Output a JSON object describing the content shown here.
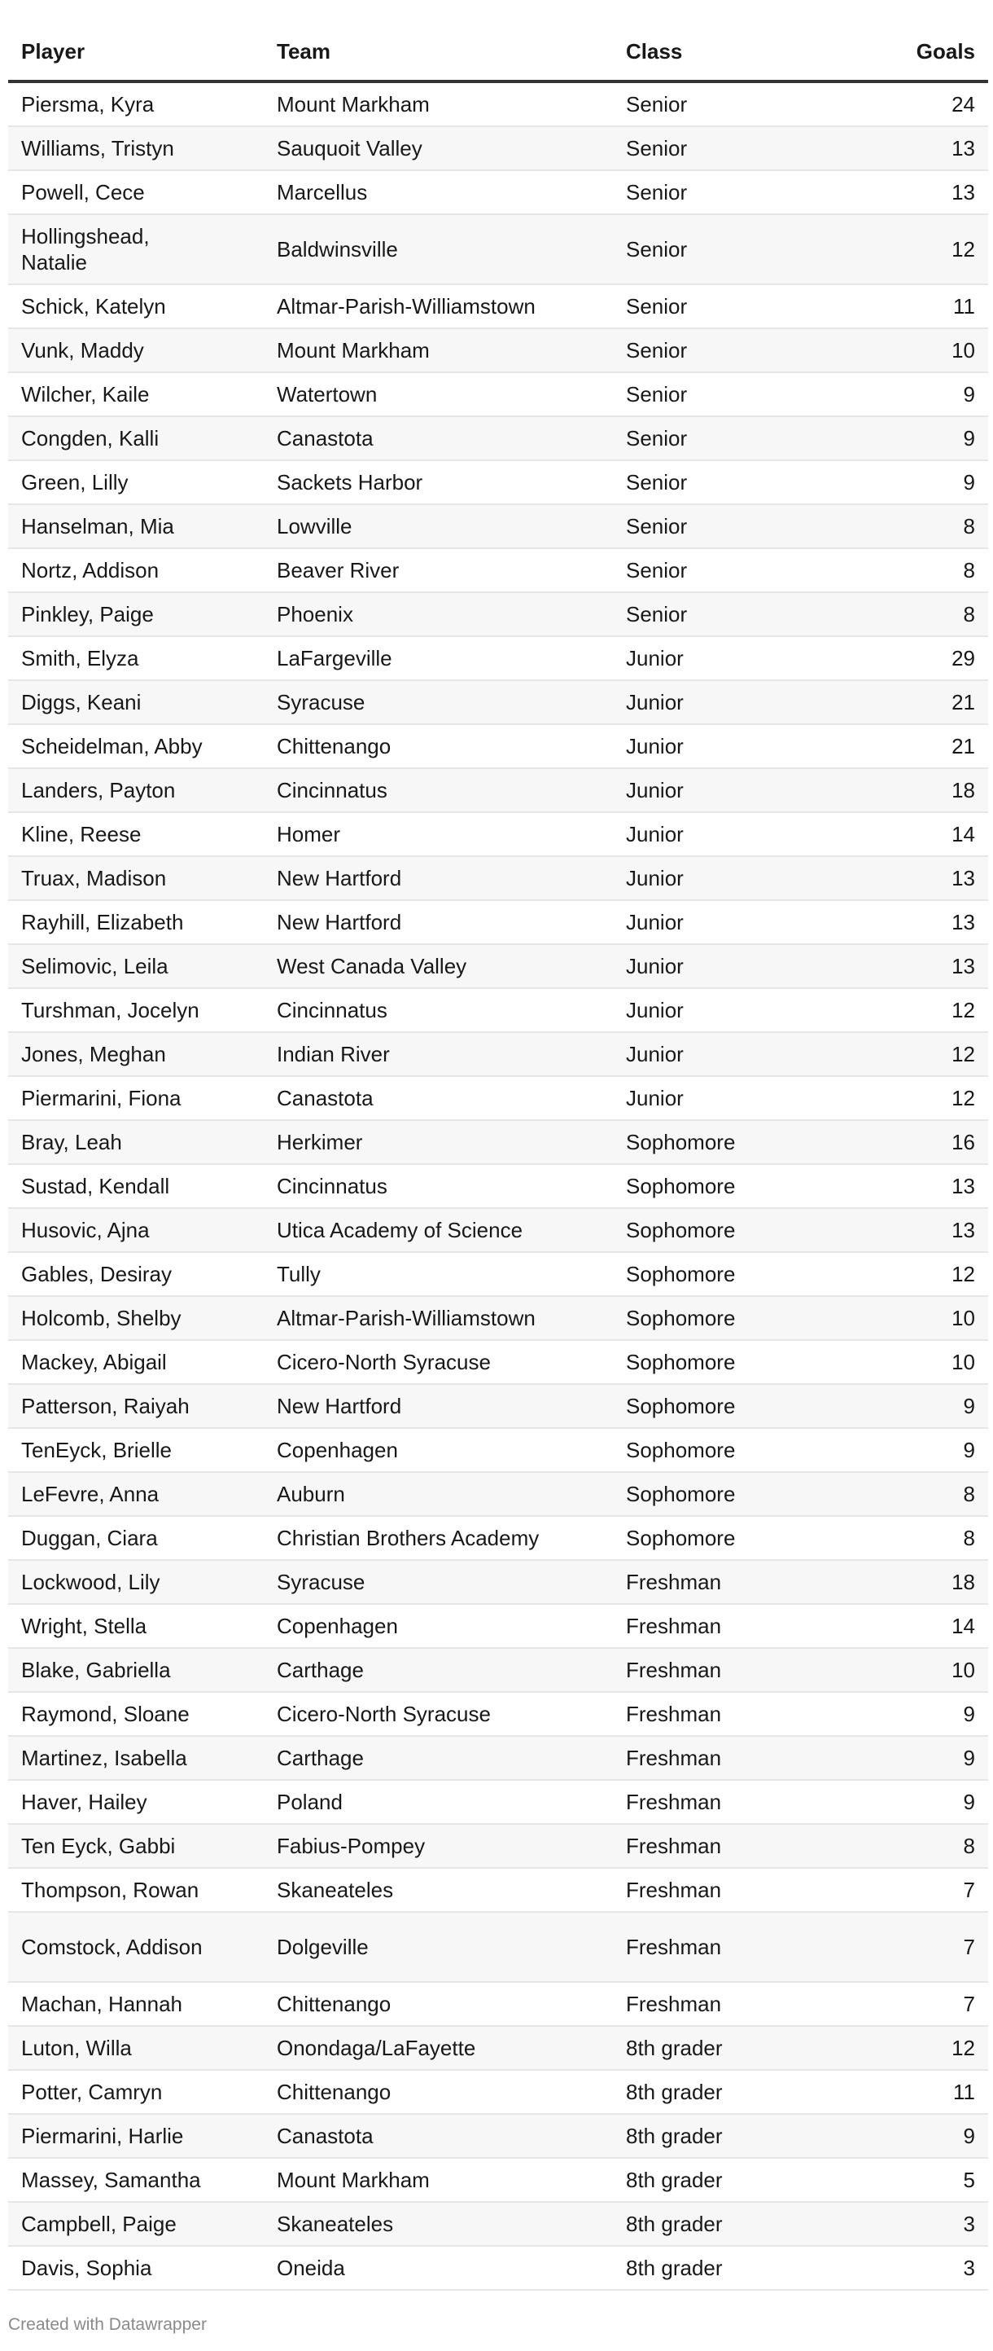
{
  "table": {
    "headers": [
      "Player",
      "Team",
      "Class",
      "Goals"
    ],
    "rows": [
      [
        "Piersma, Kyra",
        "Mount Markham",
        "Senior",
        "24"
      ],
      [
        "Williams, Tristyn",
        "Sauquoit Valley",
        "Senior",
        "13"
      ],
      [
        "Powell, Cece",
        "Marcellus",
        "Senior",
        "13"
      ],
      [
        "Hollingshead, Natalie",
        "Baldwinsville",
        "Senior",
        "12"
      ],
      [
        "Schick, Katelyn",
        "Altmar-Parish-Williamstown",
        "Senior",
        "11"
      ],
      [
        "Vunk, Maddy",
        "Mount Markham",
        "Senior",
        "10"
      ],
      [
        "Wilcher, Kaile",
        "Watertown",
        "Senior",
        "9"
      ],
      [
        "Congden, Kalli",
        "Canastota",
        "Senior",
        "9"
      ],
      [
        "Green, Lilly",
        "Sackets Harbor",
        "Senior",
        "9"
      ],
      [
        "Hanselman, Mia",
        "Lowville",
        "Senior",
        "8"
      ],
      [
        "Nortz, Addison",
        "Beaver River",
        "Senior",
        "8"
      ],
      [
        "Pinkley, Paige",
        "Phoenix",
        "Senior",
        "8"
      ],
      [
        "Smith, Elyza",
        "LaFargeville",
        "Junior",
        "29"
      ],
      [
        "Diggs, Keani",
        "Syracuse",
        "Junior",
        "21"
      ],
      [
        "Scheidelman, Abby",
        "Chittenango",
        "Junior",
        "21"
      ],
      [
        "Landers, Payton",
        "Cincinnatus",
        "Junior",
        "18"
      ],
      [
        "Kline, Reese",
        "Homer",
        "Junior",
        "14"
      ],
      [
        "Truax, Madison",
        "New Hartford",
        "Junior",
        "13"
      ],
      [
        "Rayhill, Elizabeth",
        "New Hartford",
        "Junior",
        "13"
      ],
      [
        "Selimovic, Leila",
        "West Canada Valley",
        "Junior",
        "13"
      ],
      [
        "Turshman, Jocelyn",
        "Cincinnatus",
        "Junior",
        "12"
      ],
      [
        "Jones, Meghan",
        "Indian River",
        "Junior",
        "12"
      ],
      [
        "Piermarini, Fiona",
        "Canastota",
        "Junior",
        "12"
      ],
      [
        "Bray, Leah",
        "Herkimer",
        "Sophomore",
        "16"
      ],
      [
        "Sustad, Kendall",
        "Cincinnatus",
        "Sophomore",
        "13"
      ],
      [
        "Husovic, Ajna",
        "Utica Academy of Science",
        "Sophomore",
        "13"
      ],
      [
        "Gables, Desiray",
        "Tully",
        "Sophomore",
        "12"
      ],
      [
        "Holcomb, Shelby",
        "Altmar-Parish-Williamstown",
        "Sophomore",
        "10"
      ],
      [
        "Mackey, Abigail",
        "Cicero-North Syracuse",
        "Sophomore",
        "10"
      ],
      [
        "Patterson, Raiyah",
        "New Hartford",
        "Sophomore",
        "9"
      ],
      [
        "TenEyck, Brielle",
        "Copenhagen",
        "Sophomore",
        "9"
      ],
      [
        "LeFevre, Anna",
        "Auburn",
        "Sophomore",
        "8"
      ],
      [
        "Duggan, Ciara",
        "Christian Brothers Academy",
        "Sophomore",
        "8"
      ],
      [
        "Lockwood, Lily",
        "Syracuse",
        "Freshman",
        "18"
      ],
      [
        "Wright, Stella",
        "Copenhagen",
        "Freshman",
        "14"
      ],
      [
        "Blake, Gabriella",
        "Carthage",
        "Freshman",
        "10"
      ],
      [
        "Raymond, Sloane",
        "Cicero-North Syracuse",
        "Freshman",
        "9"
      ],
      [
        "Martinez, Isabella",
        "Carthage",
        "Freshman",
        "9"
      ],
      [
        "Haver, Hailey",
        "Poland",
        "Freshman",
        "9"
      ],
      [
        "Ten Eyck, Gabbi",
        "Fabius-Pompey",
        "Freshman",
        "8"
      ],
      [
        "Thompson, Rowan",
        "Skaneateles",
        "Freshman",
        "7"
      ],
      [
        "Comstock, Addison",
        "Dolgeville",
        "Freshman",
        "7"
      ],
      [
        "Machan, Hannah",
        "Chittenango",
        "Freshman",
        "7"
      ],
      [
        "Luton, Willa",
        "Onondaga/LaFayette",
        "8th grader",
        "12"
      ],
      [
        "Potter, Camryn",
        "Chittenango",
        "8th grader",
        "11"
      ],
      [
        "Piermarini, Harlie",
        "Canastota",
        "8th grader",
        "9"
      ],
      [
        "Massey, Samantha",
        "Mount Markham",
        "8th grader",
        "5"
      ],
      [
        "Campbell, Paige",
        "Skaneateles",
        "8th grader",
        "3"
      ],
      [
        "Davis, Sophia",
        "Oneida",
        "8th grader",
        "3"
      ]
    ]
  },
  "footer": "Created with Datawrapper"
}
